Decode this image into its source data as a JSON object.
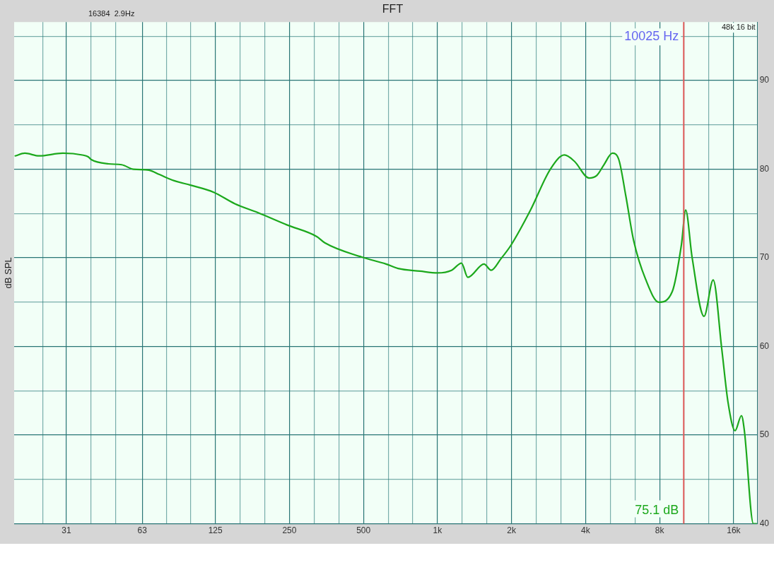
{
  "chart_data": {
    "type": "line",
    "title": "FFT",
    "ylabel": "dB SPL",
    "annotations": [
      "16384  2.9Hz",
      "48k 16 bit",
      "75.1 dB"
    ],
    "x": [
      19.2,
      21,
      24,
      30,
      36,
      38,
      39,
      46,
      52,
      58,
      67,
      74,
      85,
      99,
      123,
      150,
      186,
      245,
      323,
      348,
      490,
      618,
      691,
      848,
      1000,
      1141,
      1252,
      1328,
      1546,
      1652,
      1811,
      1987,
      2390,
      2876,
      3281,
      3600,
      4135,
      4445,
      4750,
      5141,
      5457,
      5829,
      6267,
      7012,
      7946,
      9007,
      9814,
      10210,
      10837,
      12126,
      13212,
      14303,
      15177,
      16215,
      17211,
      17670,
      19254,
      19800
    ],
    "series": [
      {
        "color": "#1ca81c",
        "values": [
          81.5,
          81.8,
          81.5,
          81.8,
          81.6,
          81.4,
          81.1,
          80.6,
          80.5,
          80.0,
          79.9,
          79.4,
          78.7,
          78.2,
          77.4,
          76.1,
          75.1,
          73.7,
          72.4,
          71.7,
          70.1,
          69.3,
          68.8,
          68.5,
          68.3,
          68.6,
          69.4,
          67.8,
          69.3,
          68.6,
          69.9,
          71.4,
          75.4,
          80.0,
          81.6,
          80.9,
          79.0,
          79.3,
          80.5,
          81.8,
          81.1,
          77.0,
          72.0,
          67.6,
          65.0,
          66.2,
          71.5,
          75.4,
          70.1,
          63.4,
          67.5,
          59.8,
          53.7,
          50.5,
          52.2,
          50.6,
          40.0,
          40.0
        ]
      }
    ],
    "log": "x",
    "xlim": [
      19,
      20000
    ],
    "xticks": [
      {
        "value": 24.8,
        "label": null
      },
      31,
      {
        "value": 39,
        "label": null
      },
      {
        "value": 49,
        "label": null
      },
      63,
      {
        "value": 79,
        "label": null
      },
      {
        "value": 99,
        "label": null
      },
      125,
      {
        "value": 157,
        "label": null
      },
      {
        "value": 198,
        "label": null
      },
      250,
      {
        "value": 315,
        "label": null
      },
      {
        "value": 397,
        "label": null
      },
      500,
      {
        "value": 630,
        "label": null
      },
      {
        "value": 794,
        "label": null
      },
      {
        "value": 1000,
        "label": "1k"
      },
      {
        "value": 1260,
        "label": null
      },
      {
        "value": 1587,
        "label": null
      },
      {
        "value": 2000,
        "label": "2k"
      },
      {
        "value": 2520,
        "label": null
      },
      {
        "value": 3175,
        "label": null
      },
      {
        "value": 4000,
        "label": "4k"
      },
      {
        "value": 5040,
        "label": null
      },
      {
        "value": 6350,
        "label": null
      },
      {
        "value": 8000,
        "label": "8k"
      },
      {
        "value": 10079,
        "label": null
      },
      {
        "value": 12699,
        "label": null
      },
      {
        "value": 16000,
        "label": "16k"
      }
    ],
    "ylim": [
      40,
      96.6
    ],
    "yticks": [
      40,
      {
        "value": 45,
        "label": null
      },
      50,
      {
        "value": 55,
        "label": null
      },
      60,
      {
        "value": 65,
        "label": null
      },
      70,
      {
        "value": 75,
        "label": null
      },
      80,
      {
        "value": 85,
        "label": null
      },
      90,
      {
        "value": 95,
        "label": null
      }
    ],
    "grid": true,
    "legend": false,
    "marker": "none",
    "line_style": "solid",
    "ref_lines": [
      {
        "axis": "x",
        "value": 10025,
        "label": "10025 Hz",
        "color": "#e05a5a"
      }
    ]
  }
}
